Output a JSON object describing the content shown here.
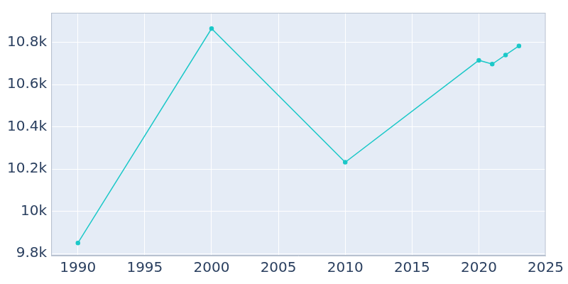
{
  "chart_data": {
    "type": "line",
    "color": "#1cc8c8",
    "marker": "circle",
    "grid": true,
    "x": [
      1990,
      2000,
      2010,
      2020,
      2021,
      2022,
      2023
    ],
    "values": [
      9850,
      10865,
      10232,
      10715,
      10697,
      10740,
      10783
    ],
    "xlim": [
      1988,
      2025
    ],
    "xticks": [
      1990,
      1995,
      2000,
      2005,
      2010,
      2015,
      2020,
      2025
    ],
    "ylim": [
      9790,
      10940
    ],
    "yticks": [
      {
        "value": 9800,
        "label": "9.8k"
      },
      {
        "value": 10000,
        "label": "10k"
      },
      {
        "value": 10200,
        "label": "10.2k"
      },
      {
        "value": 10400,
        "label": "10.4k"
      },
      {
        "value": 10600,
        "label": "10.6k"
      },
      {
        "value": 10800,
        "label": "10.8k"
      }
    ]
  }
}
